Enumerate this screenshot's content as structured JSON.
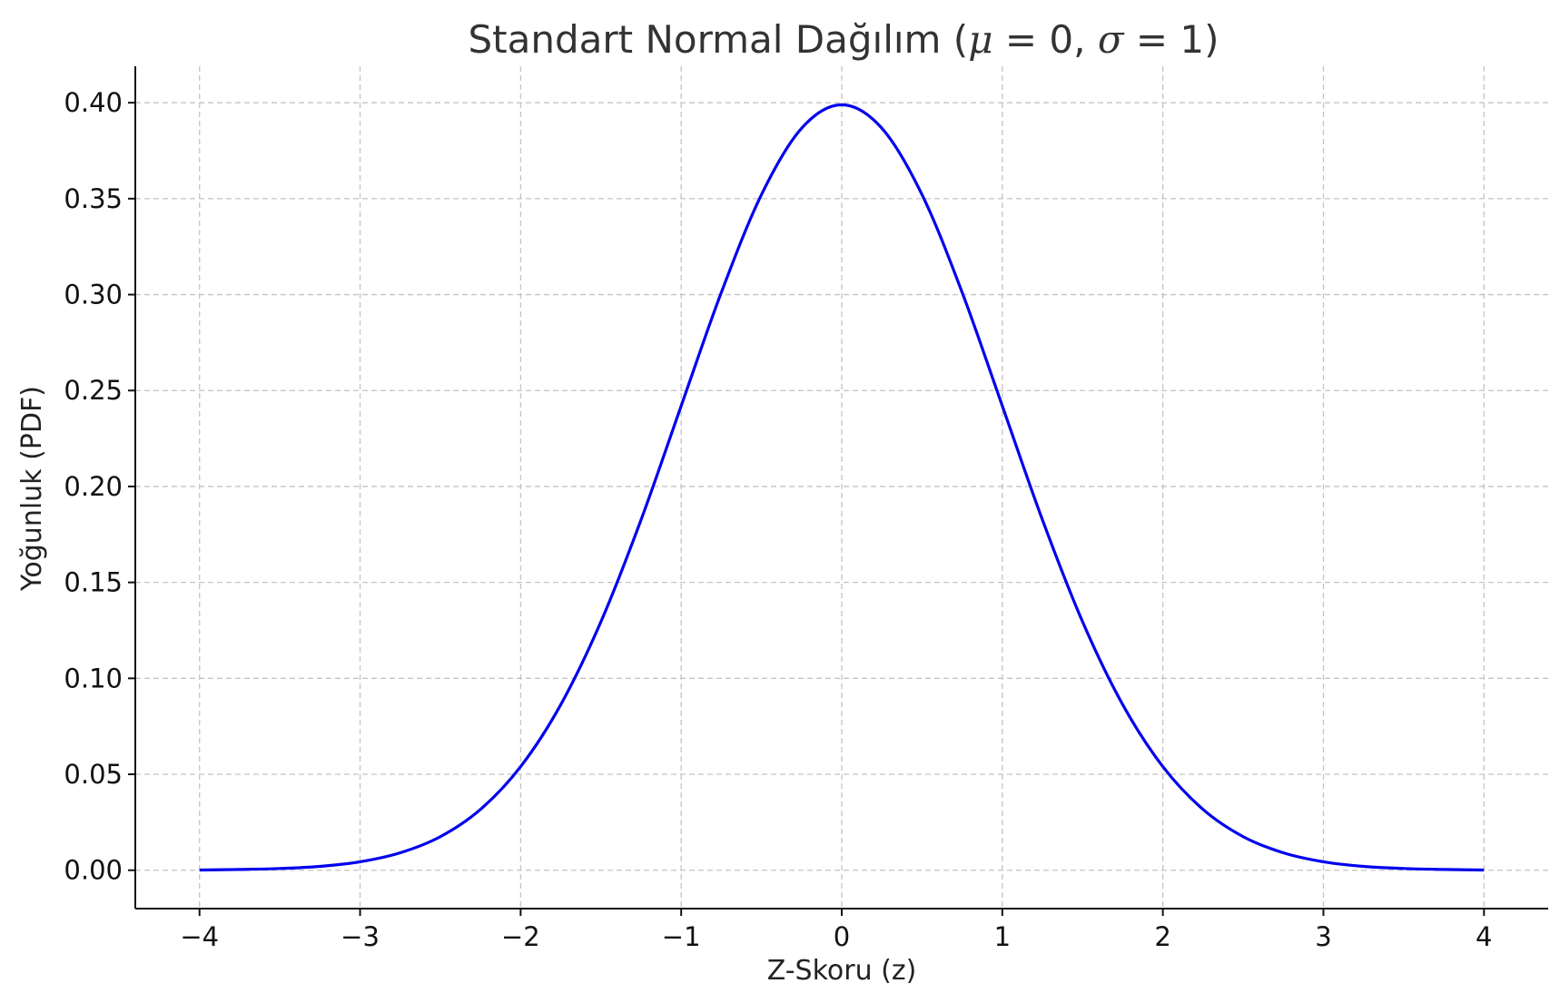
{
  "chart_data": {
    "type": "line",
    "title_prefix": "Standart Normal Dağılım (",
    "title_mu": "μ",
    "title_eq1": " = 0,  ",
    "title_sigma": "σ",
    "title_eq2": " = 1)",
    "xlabel": "Z-Skoru (z)",
    "ylabel": "Yoğunluk (PDF)",
    "xlim": [
      -4.4,
      4.4
    ],
    "ylim": [
      -0.02,
      0.419
    ],
    "xticks": [
      -4,
      -3,
      -2,
      -1,
      0,
      1,
      2,
      3,
      4
    ],
    "xtick_labels": [
      "−4",
      "−3",
      "−2",
      "−1",
      "0",
      "1",
      "2",
      "3",
      "4"
    ],
    "yticks": [
      0.0,
      0.05,
      0.1,
      0.15,
      0.2,
      0.25,
      0.3,
      0.35,
      0.4
    ],
    "ytick_labels": [
      "0.00",
      "0.05",
      "0.10",
      "0.15",
      "0.20",
      "0.25",
      "0.30",
      "0.35",
      "0.40"
    ],
    "grid": true,
    "series": [
      {
        "color": "#0000ee",
        "x": [
          -4.0,
          -3.75,
          -3.5,
          -3.25,
          -3.0,
          -2.75,
          -2.5,
          -2.25,
          -2.0,
          -1.75,
          -1.5,
          -1.25,
          -1.0,
          -0.75,
          -0.5,
          -0.25,
          0.0,
          0.25,
          0.5,
          0.75,
          1.0,
          1.25,
          1.5,
          1.75,
          2.0,
          2.25,
          2.5,
          2.75,
          3.0,
          3.25,
          3.5,
          3.75,
          4.0
        ],
        "y": [
          0.0001,
          0.0004,
          0.0009,
          0.002,
          0.0044,
          0.0091,
          0.0175,
          0.0317,
          0.054,
          0.0863,
          0.1295,
          0.1826,
          0.242,
          0.3011,
          0.3521,
          0.3867,
          0.3989,
          0.3867,
          0.3521,
          0.3011,
          0.242,
          0.1826,
          0.1295,
          0.0863,
          0.054,
          0.0317,
          0.0175,
          0.0091,
          0.0044,
          0.002,
          0.0009,
          0.0004,
          0.0001
        ]
      }
    ]
  }
}
